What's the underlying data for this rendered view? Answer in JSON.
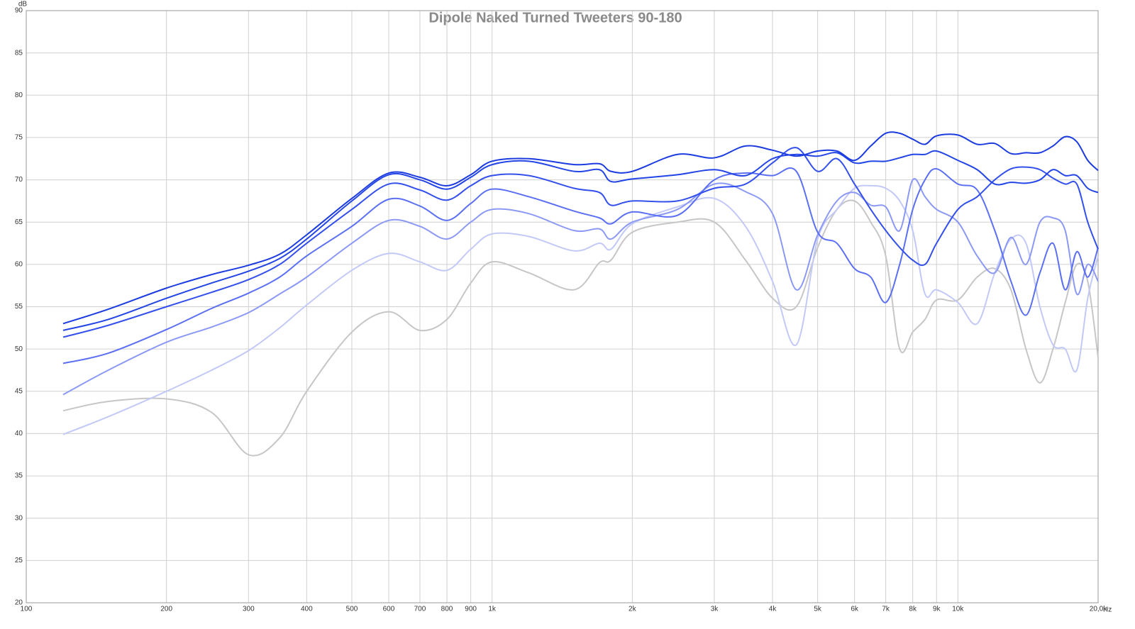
{
  "chart_data": {
    "type": "line",
    "title": "Dipole Naked Turned Tweeters 90-180",
    "x_label": "Hz",
    "y_label": "dB",
    "log_x": true,
    "grid": true,
    "xlim": [
      100,
      20000
    ],
    "ylim": [
      20,
      90
    ],
    "xticks": [
      100,
      200,
      300,
      400,
      500,
      600,
      700,
      800,
      900,
      {
        "value": 1000,
        "label": "1k"
      },
      {
        "value": 2000,
        "label": "2k"
      },
      {
        "value": 3000,
        "label": "3k"
      },
      {
        "value": 4000,
        "label": "4k"
      },
      {
        "value": 5000,
        "label": "5k"
      },
      {
        "value": 6000,
        "label": "6k"
      },
      {
        "value": 7000,
        "label": "7k"
      },
      {
        "value": 8000,
        "label": "8k"
      },
      {
        "value": 9000,
        "label": "9k"
      },
      {
        "value": 10000,
        "label": "10k"
      },
      {
        "value": 20000,
        "label": "20,0k"
      }
    ],
    "yticks": [
      20,
      25,
      30,
      35,
      40,
      45,
      50,
      55,
      60,
      65,
      70,
      75,
      80,
      85,
      90
    ],
    "x": [
      120,
      150,
      200,
      250,
      300,
      350,
      400,
      500,
      600,
      700,
      800,
      900,
      1000,
      1200,
      1500,
      1700,
      1800,
      2000,
      2500,
      3000,
      3500,
      4000,
      4500,
      5000,
      5500,
      6000,
      6500,
      7000,
      7500,
      8000,
      8500,
      9000,
      10000,
      11000,
      12000,
      13000,
      14000,
      15000,
      16000,
      17000,
      18000,
      19000,
      20000
    ],
    "series": [
      {
        "color": "#1c3ce0",
        "values": [
          53,
          54.7,
          57.2,
          58.8,
          59.9,
          61.2,
          63.5,
          67.8,
          70.8,
          70.3,
          69.3,
          70.6,
          72.2,
          72.5,
          71.8,
          71.9,
          71.0,
          71.0,
          73.0,
          72.6,
          74.0,
          73.5,
          72.8,
          73.4,
          73.4,
          72.3,
          74,
          75.5,
          75.5,
          74.8,
          74.2,
          75.2,
          75.3,
          74.2,
          74.3,
          73.1,
          73.2,
          73.2,
          74,
          75.1,
          74.5,
          72.3,
          71.1
        ]
      },
      {
        "color": "#2445e6",
        "values": [
          52.2,
          53.5,
          56.0,
          57.8,
          59.2,
          60.7,
          63.0,
          67.5,
          70.6,
          70.0,
          68.9,
          70.3,
          71.8,
          72.2,
          71.0,
          71.2,
          69.8,
          70.1,
          70.6,
          71.2,
          70.5,
          72.5,
          73.0,
          72.8,
          73.2,
          72.0,
          72.2,
          72.2,
          72.6,
          73.0,
          73.0,
          73.4,
          72.3,
          71.2,
          69.5,
          69.7,
          69.6,
          70.0,
          71.2,
          70.5,
          70.5,
          69.0,
          68.5
        ]
      },
      {
        "color": "#3450ec",
        "values": [
          51.4,
          52.8,
          55.0,
          56.7,
          58.2,
          60,
          62.5,
          66.5,
          69.5,
          68.8,
          67.6,
          69.3,
          70.5,
          70.5,
          69.0,
          68.5,
          67.0,
          67.5,
          67.5,
          69.0,
          69.5,
          72.0,
          73.8,
          71.0,
          72.5,
          69.5,
          66.5,
          64,
          62,
          60.5,
          60,
          62.5,
          66.5,
          68,
          70,
          71.3,
          71.5,
          71.2,
          70.2,
          69.5,
          69.5,
          65,
          61.8
        ]
      },
      {
        "color": "#5b6ff2",
        "values": [
          48.3,
          49.5,
          52.3,
          54.8,
          56.6,
          58.5,
          61,
          64.5,
          67.7,
          66.9,
          65.2,
          67.2,
          68.9,
          68,
          66.3,
          65.5,
          64.8,
          66.2,
          65.8,
          70,
          70.8,
          70.5,
          71.0,
          63.8,
          62.5,
          59.5,
          58.5,
          55.5,
          60,
          66.5,
          70,
          71.3,
          69.5,
          68.8,
          64,
          58,
          54,
          59,
          62.5,
          57,
          61.5,
          58.5,
          62
        ]
      },
      {
        "color": "#8c99f4",
        "values": [
          44.6,
          47.5,
          50.8,
          52.6,
          54.3,
          56.5,
          58.5,
          62.5,
          65.2,
          64.5,
          63,
          65,
          66.5,
          66,
          64,
          64.2,
          63,
          65,
          66.5,
          69.5,
          68.6,
          66,
          57,
          63.5,
          67.5,
          68.5,
          67,
          66.8,
          64,
          70,
          68,
          66.5,
          65,
          61,
          59,
          63.2,
          60,
          65,
          65.5,
          64,
          56.5,
          60,
          58
        ]
      },
      {
        "color": "#c3c9f7",
        "values": [
          39.9,
          42,
          45,
          47.5,
          49.8,
          52.5,
          55.2,
          59.3,
          61.3,
          60.3,
          59.3,
          61.8,
          63.6,
          63.3,
          61.6,
          62.5,
          61.8,
          64.8,
          66.8,
          67.8,
          64.5,
          58,
          50.5,
          63,
          66.5,
          69,
          69.3,
          69,
          67.5,
          64,
          56.5,
          57,
          55.5,
          53,
          59,
          63,
          62.5,
          55,
          50.5,
          50,
          47.5,
          56,
          61
        ]
      },
      {
        "color": "#c6c6c6",
        "values": [
          42.7,
          43.8,
          44.1,
          42.5,
          37.5,
          39.5,
          45,
          52,
          54.4,
          52.2,
          53.5,
          57.8,
          60.3,
          59,
          57,
          60.2,
          60.5,
          63.8,
          65,
          65,
          60.5,
          56,
          55,
          62,
          66.5,
          67.5,
          65,
          61,
          50,
          52,
          53.5,
          55.8,
          55.8,
          58.5,
          59.5,
          57,
          50,
          46,
          50,
          55.5,
          60,
          58,
          49
        ]
      }
    ]
  }
}
